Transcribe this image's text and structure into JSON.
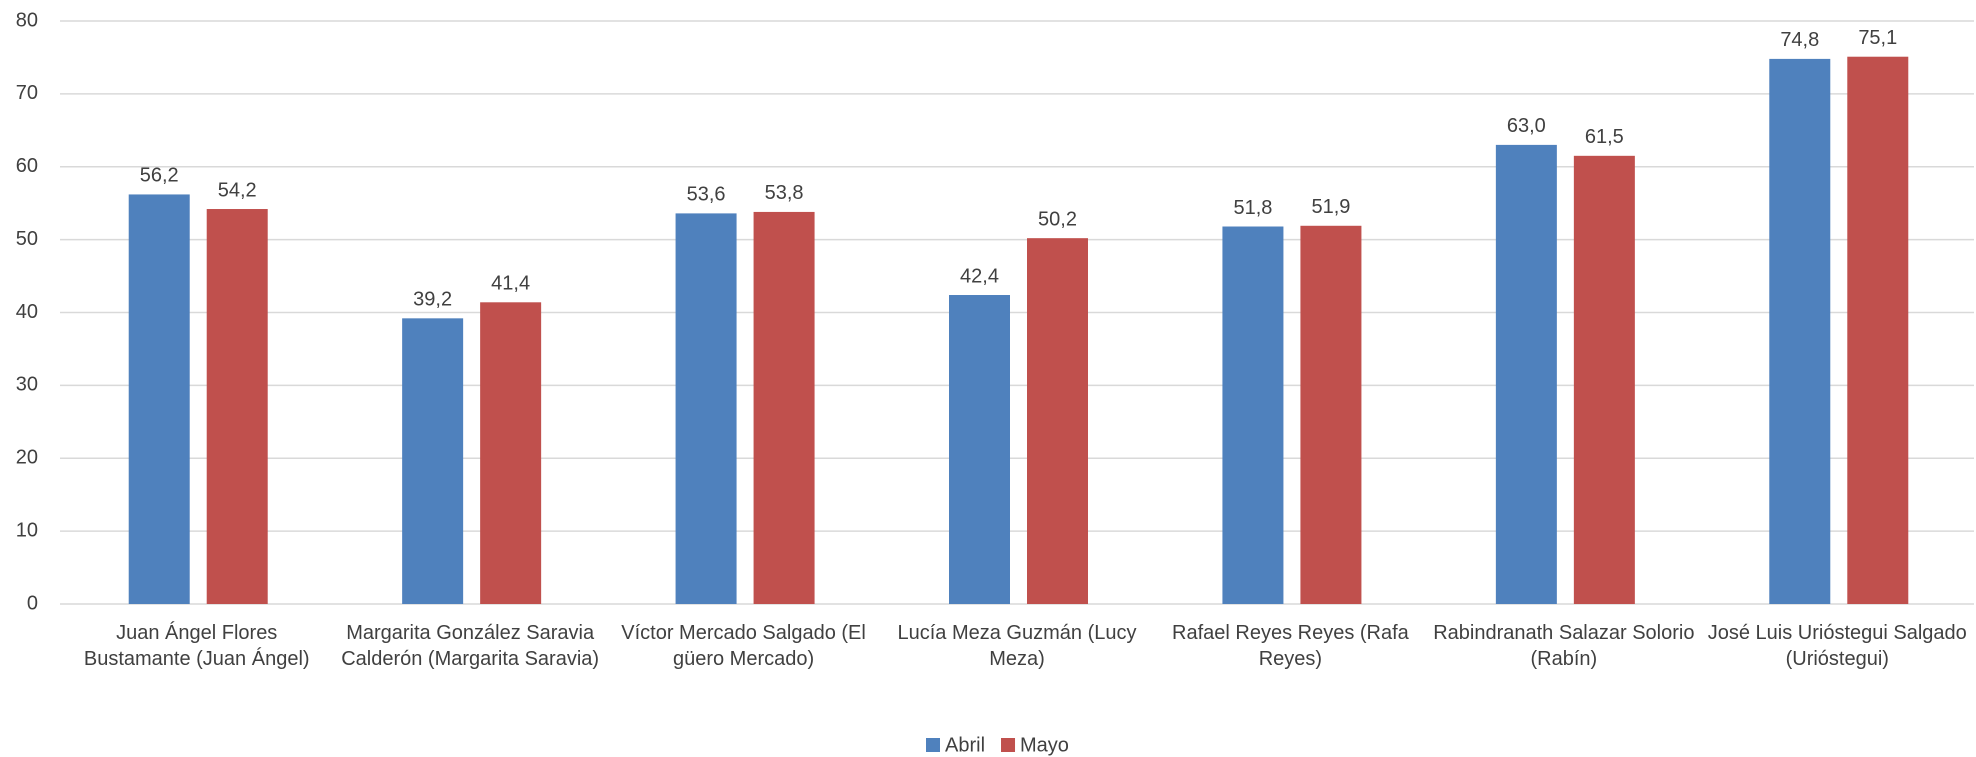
{
  "chart_data": {
    "type": "bar",
    "categories": [
      "Juan Ángel Flores Bustamante (Juan Ángel)",
      "Margarita González Saravia Calderón (Margarita Saravia)",
      "Víctor Mercado Salgado (El güero Mercado)",
      "Lucía Meza Guzmán (Lucy Meza)",
      "Rafael Reyes Reyes (Rafa Reyes)",
      "Rabindranath Salazar Solorio (Rabín)",
      "José Luis Urióstegui Salgado (Urióstegui)"
    ],
    "series": [
      {
        "name": "Abril",
        "color": "#4f81bd",
        "values": [
          56.2,
          39.2,
          53.6,
          42.4,
          51.8,
          63.0,
          74.8
        ],
        "value_labels": [
          "56,2",
          "39,2",
          "53,6",
          "42,4",
          "51,8",
          "63,0",
          "74,8"
        ]
      },
      {
        "name": "Mayo",
        "color": "#c0504d",
        "values": [
          54.2,
          41.4,
          53.8,
          50.2,
          51.9,
          61.5,
          75.1
        ],
        "value_labels": [
          "54,2",
          "41,4",
          "53,8",
          "50,2",
          "51,9",
          "61,5",
          "75,1"
        ]
      }
    ],
    "ylim": [
      0,
      80
    ],
    "yticks": [
      0,
      10,
      20,
      30,
      40,
      50,
      60,
      70,
      80
    ],
    "grid": true,
    "legend": "bottom"
  }
}
